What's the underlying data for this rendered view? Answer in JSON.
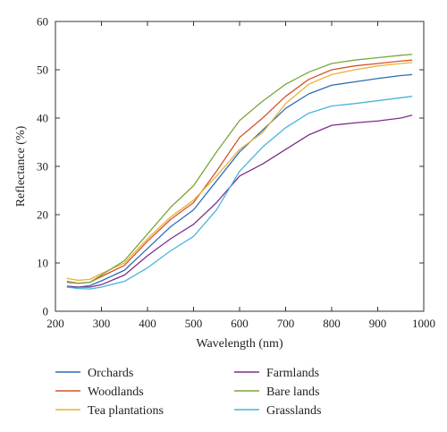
{
  "chart_data": {
    "type": "line",
    "title": "",
    "xlabel": "Wavelength (nm)",
    "ylabel": "Reflectance (%)",
    "xlim": [
      200,
      1000
    ],
    "ylim": [
      0,
      60
    ],
    "xticks": [
      200,
      300,
      400,
      500,
      600,
      700,
      800,
      900,
      1000
    ],
    "yticks": [
      0,
      10,
      20,
      30,
      40,
      50,
      60
    ],
    "grid": false,
    "legend_position": "below",
    "x": [
      225,
      250,
      275,
      300,
      350,
      400,
      450,
      500,
      550,
      600,
      650,
      700,
      750,
      800,
      850,
      900,
      950,
      975
    ],
    "series": [
      {
        "name": "Orchards",
        "color": "#2e6db3",
        "values": [
          5.2,
          5.0,
          5.3,
          6.3,
          8.5,
          13.0,
          17.5,
          21.0,
          27.0,
          33.0,
          37.5,
          42.0,
          45.0,
          46.8,
          47.5,
          48.2,
          48.8,
          49.0
        ]
      },
      {
        "name": "Woodlands",
        "color": "#d4542a",
        "values": [
          6.0,
          5.8,
          6.0,
          7.2,
          9.5,
          14.5,
          19.0,
          22.5,
          29.0,
          36.0,
          40.0,
          44.5,
          48.0,
          50.0,
          50.8,
          51.3,
          51.8,
          52.0
        ]
      },
      {
        "name": "Tea plantations",
        "color": "#e9b23a",
        "values": [
          6.8,
          6.4,
          6.6,
          7.8,
          10.0,
          15.0,
          19.5,
          23.0,
          28.0,
          33.5,
          37.0,
          43.0,
          47.0,
          49.0,
          50.0,
          50.8,
          51.3,
          51.5
        ]
      },
      {
        "name": "Farmlands",
        "color": "#7b2f8a",
        "values": [
          5.0,
          5.0,
          5.0,
          5.5,
          7.5,
          11.5,
          15.0,
          18.0,
          22.5,
          28.0,
          30.5,
          33.5,
          36.5,
          38.5,
          39.0,
          39.4,
          40.0,
          40.6
        ]
      },
      {
        "name": "Bare lands",
        "color": "#78a83a",
        "values": [
          6.2,
          5.8,
          6.0,
          7.5,
          10.5,
          16.0,
          21.5,
          26.0,
          33.0,
          39.5,
          43.5,
          47.0,
          49.5,
          51.3,
          52.0,
          52.5,
          53.0,
          53.2
        ]
      },
      {
        "name": "Grasslands",
        "color": "#49b3e0",
        "values": [
          5.0,
          4.7,
          4.6,
          5.0,
          6.2,
          9.0,
          12.5,
          15.5,
          21.0,
          29.0,
          34.0,
          38.0,
          41.0,
          42.5,
          43.0,
          43.6,
          44.2,
          44.5
        ]
      }
    ]
  }
}
